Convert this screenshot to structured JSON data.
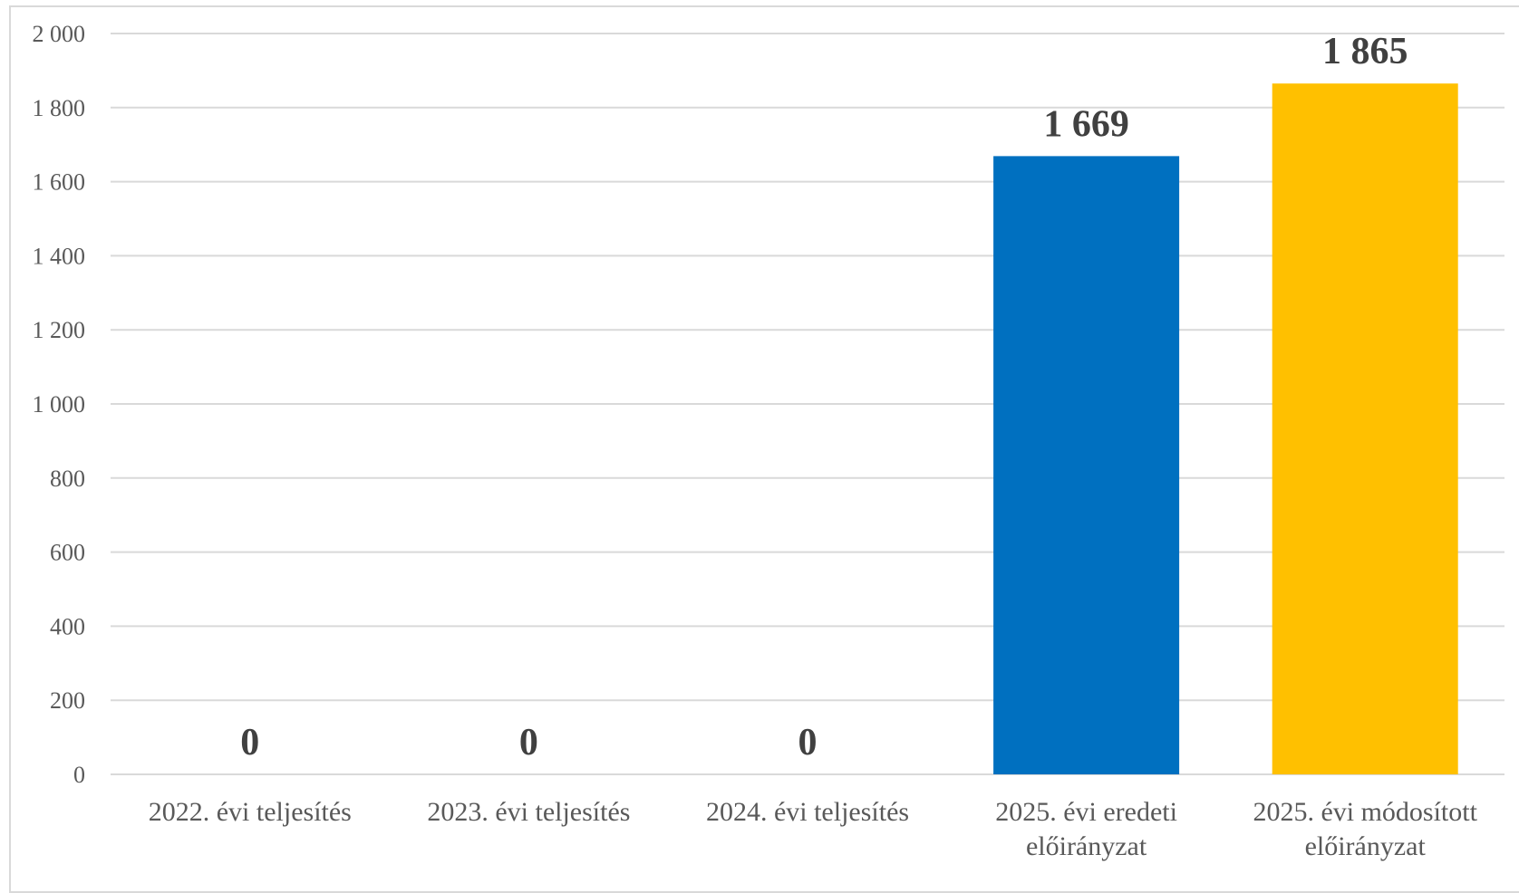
{
  "chart_data": {
    "type": "bar",
    "categories": [
      [
        "2022. évi teljesítés"
      ],
      [
        "2023. évi teljesítés"
      ],
      [
        "2024. évi teljesítés"
      ],
      [
        "2025. évi eredeti",
        "előirányzat"
      ],
      [
        "2025. évi módosított",
        "előirányzat"
      ]
    ],
    "values": [
      0,
      0,
      0,
      1669,
      1865
    ],
    "data_labels": [
      "0",
      "0",
      "0",
      "1 669",
      "1 865"
    ],
    "colors": [
      "#0070c0",
      "#0070c0",
      "#0070c0",
      "#0070c0",
      "#ffc000"
    ],
    "ylim": [
      0,
      2000
    ],
    "yticks": [
      0,
      200,
      400,
      600,
      800,
      1000,
      1200,
      1400,
      1600,
      1800,
      2000
    ],
    "ytick_labels": [
      "0",
      "200",
      "400",
      "600",
      "800",
      "1 000",
      "1 200",
      "1 400",
      "1 600",
      "1 800",
      "2 000"
    ],
    "grid": true,
    "gridline_color": "#d9d9d9",
    "title": "",
    "xlabel": "",
    "ylabel": ""
  }
}
